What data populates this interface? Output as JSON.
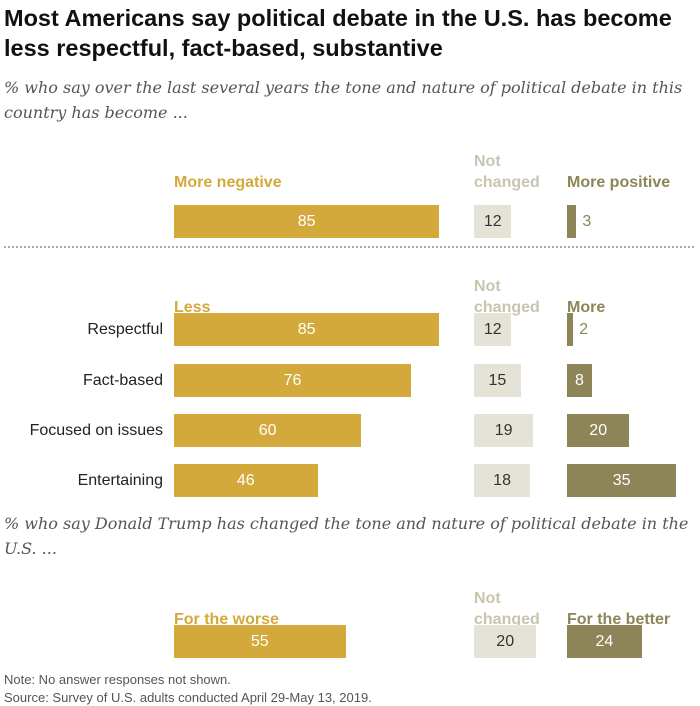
{
  "title": "Most Americans say political debate in the U.S. has become less respectful, fact-based, substantive",
  "notes": {
    "note": "Note: No answer responses not shown.",
    "source": "Source: Survey of U.S. adults conducted April 29-May 13, 2019."
  },
  "colors": {
    "negative": "#d4a93b",
    "not_changed": "#e5e3d8",
    "positive": "#8d8558"
  },
  "chart_data": [
    {
      "type": "bar",
      "subtitle": "% who say over the last several years the tone and nature of political debate in this country has become ...",
      "headers": {
        "negative": "More negative",
        "not_changed": "Not changed",
        "positive": "More positive"
      },
      "rows": [
        {
          "label": "",
          "negative": 85,
          "not_changed": 12,
          "positive": 3
        }
      ]
    },
    {
      "type": "bar",
      "headers": {
        "negative": "Less",
        "not_changed": "Not changed",
        "positive": "More"
      },
      "rows": [
        {
          "label": "Respectful",
          "negative": 85,
          "not_changed": 12,
          "positive": 2
        },
        {
          "label": "Fact-based",
          "negative": 76,
          "not_changed": 15,
          "positive": 8
        },
        {
          "label": "Focused on issues",
          "negative": 60,
          "not_changed": 19,
          "positive": 20
        },
        {
          "label": "Entertaining",
          "negative": 46,
          "not_changed": 18,
          "positive": 35
        }
      ]
    },
    {
      "type": "bar",
      "subtitle": "% who say Donald Trump has changed the tone and nature of political debate in the U.S. ...",
      "headers": {
        "negative": "For the worse",
        "not_changed": "Not changed",
        "positive": "For the better"
      },
      "rows": [
        {
          "label": "",
          "negative": 55,
          "not_changed": 20,
          "positive": 24
        }
      ]
    }
  ]
}
